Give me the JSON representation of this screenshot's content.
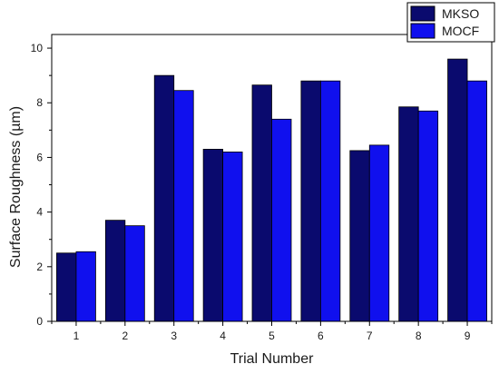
{
  "chart_data": {
    "type": "bar",
    "title": "",
    "xlabel": "Trial Number",
    "ylabel": "Surface Roughness (µm)",
    "categories": [
      "1",
      "2",
      "3",
      "4",
      "5",
      "6",
      "7",
      "8",
      "9"
    ],
    "ylim": [
      0,
      10.5
    ],
    "yticks": [
      "0",
      "2",
      "4",
      "6",
      "8",
      "10"
    ],
    "grid": false,
    "legend_position": "top-right",
    "series": [
      {
        "name": "MKSO",
        "color": "#0a0a6e",
        "values": [
          2.5,
          3.7,
          9.0,
          6.3,
          8.65,
          8.8,
          6.25,
          7.85,
          9.6
        ]
      },
      {
        "name": "MOCF",
        "color": "#1010ee",
        "values": [
          2.55,
          3.5,
          8.45,
          6.2,
          7.4,
          8.8,
          6.45,
          7.7,
          8.8
        ]
      }
    ]
  }
}
